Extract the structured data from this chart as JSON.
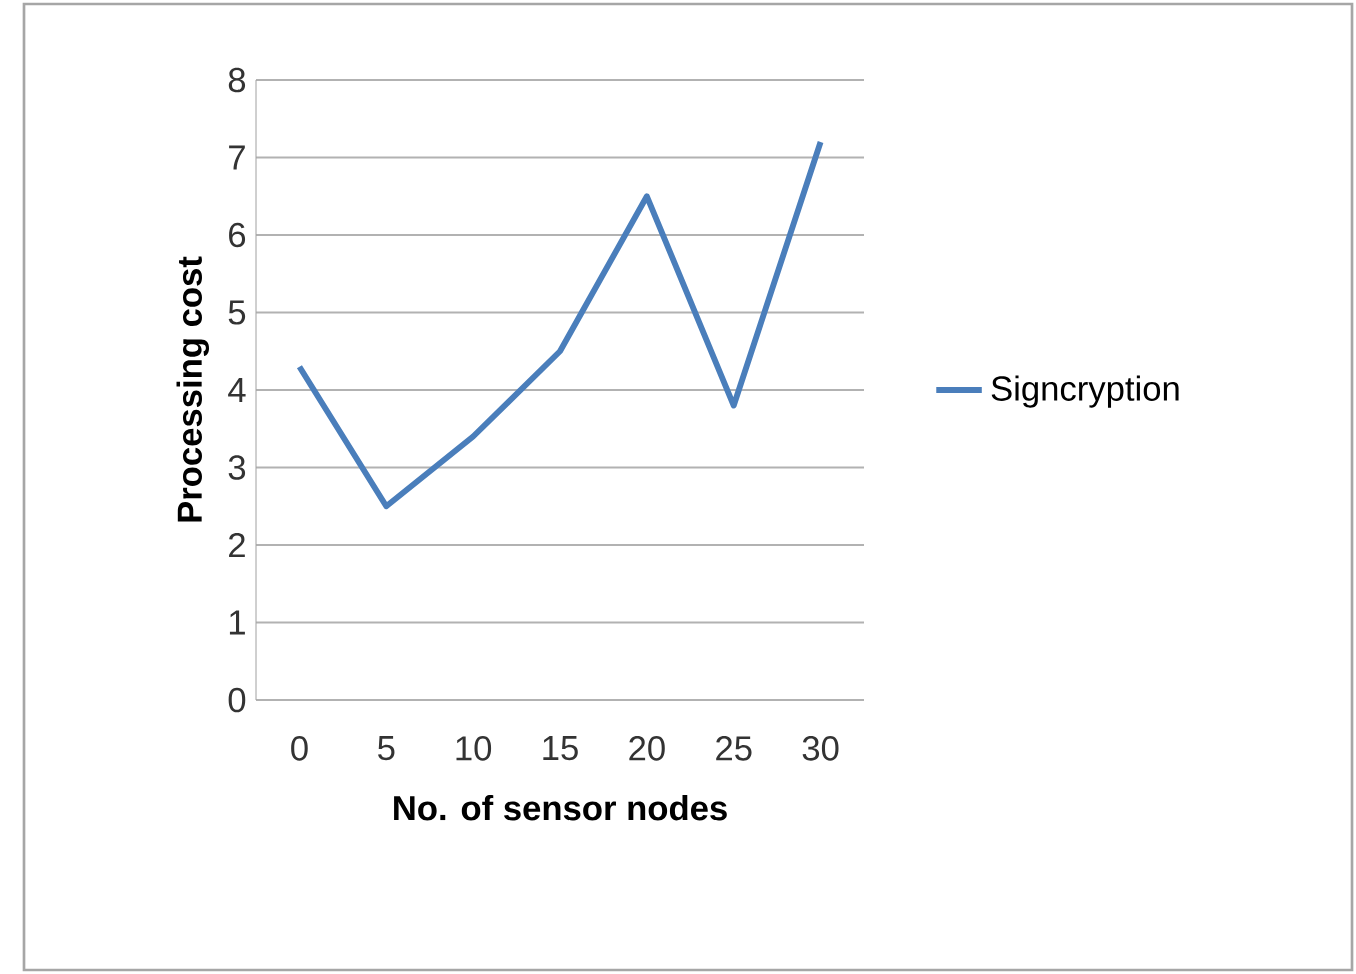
{
  "chart_data": {
    "type": "line",
    "xlabel": "No. of sensor nodes",
    "ylabel": "Processing cost",
    "categories": [
      "0",
      "5",
      "10",
      "15",
      "20",
      "25",
      "30"
    ],
    "series": [
      {
        "name": "Signcryption",
        "color": "#4a7ebb",
        "values": [
          4.3,
          2.5,
          3.4,
          4.5,
          6.5,
          3.8,
          7.2
        ]
      }
    ],
    "ylim": [
      0,
      8
    ],
    "yticks": [
      0,
      1,
      2,
      3,
      4,
      5,
      6,
      7,
      8
    ],
    "grid": "y",
    "legend": "right",
    "marker": "none",
    "line_style": "solid"
  }
}
